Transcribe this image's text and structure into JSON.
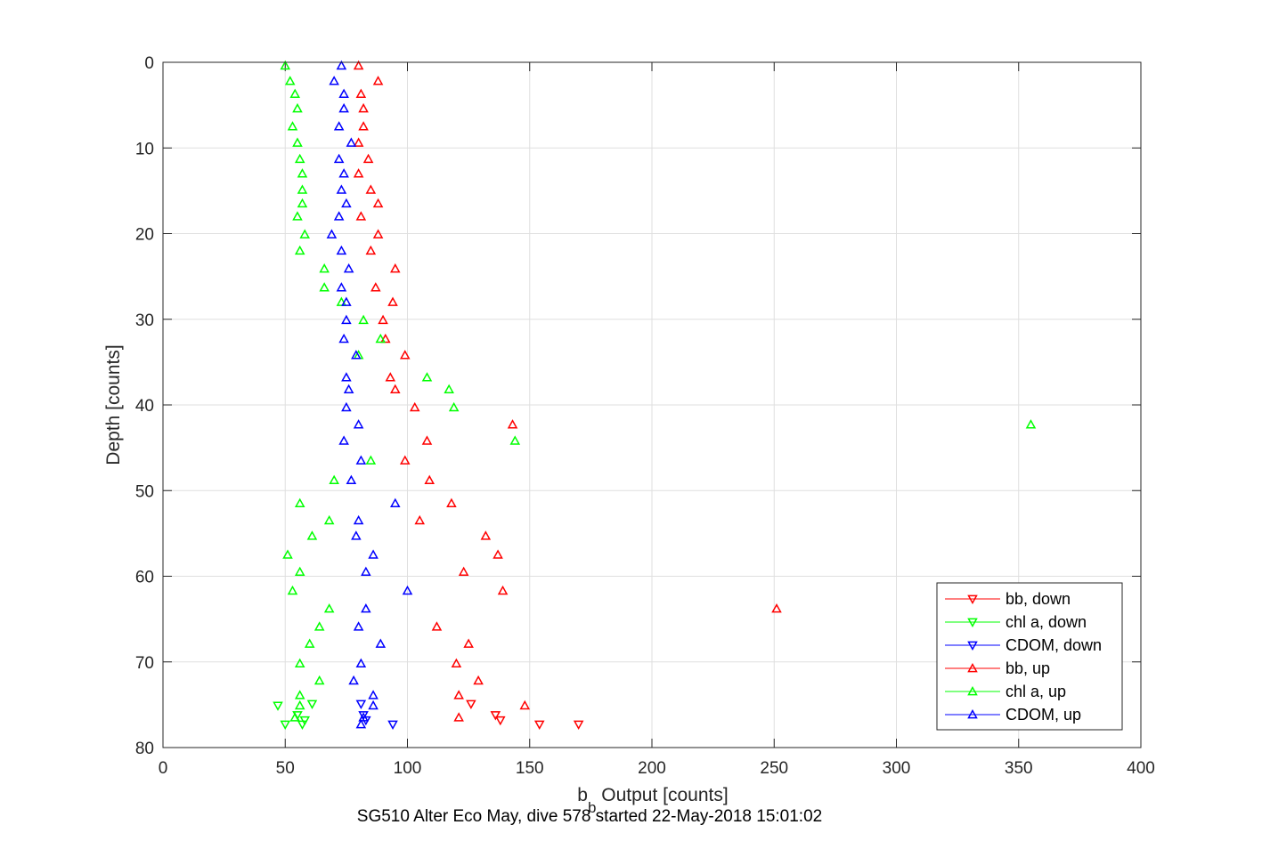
{
  "chart_data": {
    "type": "scatter",
    "xlabel": "b",
    "xlabel_sub": "b",
    "xlabel_rest": " Output [counts]",
    "ylabel": "Depth [counts]",
    "caption": "SG510 Alter Eco May, dive 578 started 22-May-2018 15:01:02",
    "xlim": [
      0,
      400
    ],
    "ylim": [
      80,
      0
    ],
    "y_reversed": true,
    "grid": true,
    "legend_placement": "bottom-right",
    "x_ticks": [
      0,
      50,
      100,
      150,
      200,
      250,
      300,
      350,
      400
    ],
    "x_tick_labels": [
      "0",
      "50",
      "100",
      "150",
      "200",
      "250",
      "300",
      "350",
      "400"
    ],
    "y_ticks": [
      0,
      10,
      20,
      30,
      40,
      50,
      60,
      70,
      80
    ],
    "y_tick_labels": [
      "0",
      "10",
      "20",
      "30",
      "40",
      "50",
      "60",
      "70",
      "80"
    ],
    "series": [
      {
        "name": "bb, down",
        "color": "#ff0000",
        "marker": "triangle-down",
        "points": [
          [
            126,
            74.9
          ],
          [
            136,
            76.2
          ],
          [
            138,
            76.8
          ],
          [
            154,
            77.3
          ],
          [
            170,
            77.3
          ]
        ]
      },
      {
        "name": "chl a, down",
        "color": "#00ff00",
        "marker": "triangle-down",
        "points": [
          [
            47,
            75.1
          ],
          [
            50,
            77.3
          ],
          [
            55,
            76.2
          ],
          [
            57,
            77.3
          ],
          [
            58,
            76.8
          ],
          [
            61,
            74.9
          ]
        ]
      },
      {
        "name": "CDOM, down",
        "color": "#0000ff",
        "marker": "triangle-down",
        "points": [
          [
            81,
            74.9
          ],
          [
            82,
            76.2
          ],
          [
            83,
            76.8
          ],
          [
            94,
            77.3
          ]
        ]
      },
      {
        "name": "bb, up",
        "color": "#ff0000",
        "marker": "triangle-up",
        "points": [
          [
            80,
            0.4
          ],
          [
            88,
            2.2
          ],
          [
            81,
            3.7
          ],
          [
            82,
            5.4
          ],
          [
            82,
            7.5
          ],
          [
            80,
            9.4
          ],
          [
            84,
            11.3
          ],
          [
            80,
            13.0
          ],
          [
            85,
            14.9
          ],
          [
            88,
            16.5
          ],
          [
            81,
            18.0
          ],
          [
            88,
            20.1
          ],
          [
            85,
            22.0
          ],
          [
            95,
            24.1
          ],
          [
            87,
            26.3
          ],
          [
            94,
            28.0
          ],
          [
            90,
            30.1
          ],
          [
            91,
            32.3
          ],
          [
            99,
            34.2
          ],
          [
            93,
            36.8
          ],
          [
            95,
            38.2
          ],
          [
            103,
            40.3
          ],
          [
            143,
            42.3
          ],
          [
            108,
            44.2
          ],
          [
            99,
            46.5
          ],
          [
            109,
            48.8
          ],
          [
            118,
            51.5
          ],
          [
            105,
            53.5
          ],
          [
            132,
            55.3
          ],
          [
            137,
            57.5
          ],
          [
            123,
            59.5
          ],
          [
            139,
            61.7
          ],
          [
            251,
            63.8
          ],
          [
            112,
            65.9
          ],
          [
            125,
            67.9
          ],
          [
            120,
            70.2
          ],
          [
            129,
            72.2
          ],
          [
            121,
            73.9
          ],
          [
            148,
            75.1
          ],
          [
            121,
            76.5
          ]
        ]
      },
      {
        "name": "chl a, up",
        "color": "#00ff00",
        "marker": "triangle-up",
        "points": [
          [
            50,
            0.4
          ],
          [
            52,
            2.2
          ],
          [
            54,
            3.7
          ],
          [
            55,
            5.4
          ],
          [
            53,
            7.5
          ],
          [
            55,
            9.4
          ],
          [
            56,
            11.3
          ],
          [
            57,
            13.0
          ],
          [
            57,
            14.9
          ],
          [
            57,
            16.5
          ],
          [
            55,
            18.0
          ],
          [
            58,
            20.1
          ],
          [
            56,
            22.0
          ],
          [
            66,
            24.1
          ],
          [
            66,
            26.3
          ],
          [
            73,
            28.0
          ],
          [
            82,
            30.1
          ],
          [
            89,
            32.3
          ],
          [
            80,
            34.2
          ],
          [
            108,
            36.8
          ],
          [
            117,
            38.2
          ],
          [
            119,
            40.3
          ],
          [
            355,
            42.3
          ],
          [
            144,
            44.2
          ],
          [
            85,
            46.5
          ],
          [
            70,
            48.8
          ],
          [
            56,
            51.5
          ],
          [
            68,
            53.5
          ],
          [
            61,
            55.3
          ],
          [
            51,
            57.5
          ],
          [
            56,
            59.5
          ],
          [
            53,
            61.7
          ],
          [
            68,
            63.8
          ],
          [
            64,
            65.9
          ],
          [
            60,
            67.9
          ],
          [
            56,
            70.2
          ],
          [
            64,
            72.2
          ],
          [
            56,
            73.9
          ],
          [
            56,
            75.1
          ],
          [
            54,
            76.5
          ]
        ]
      },
      {
        "name": "CDOM, up",
        "color": "#0000ff",
        "marker": "triangle-up",
        "points": [
          [
            73,
            0.4
          ],
          [
            70,
            2.2
          ],
          [
            74,
            3.7
          ],
          [
            74,
            5.4
          ],
          [
            72,
            7.5
          ],
          [
            77,
            9.4
          ],
          [
            72,
            11.3
          ],
          [
            74,
            13.0
          ],
          [
            73,
            14.9
          ],
          [
            75,
            16.5
          ],
          [
            72,
            18.0
          ],
          [
            69,
            20.1
          ],
          [
            73,
            22.0
          ],
          [
            76,
            24.1
          ],
          [
            73,
            26.3
          ],
          [
            75,
            28.0
          ],
          [
            75,
            30.1
          ],
          [
            74,
            32.3
          ],
          [
            79,
            34.2
          ],
          [
            75,
            36.8
          ],
          [
            76,
            38.2
          ],
          [
            75,
            40.3
          ],
          [
            80,
            42.3
          ],
          [
            74,
            44.2
          ],
          [
            81,
            46.5
          ],
          [
            77,
            48.8
          ],
          [
            95,
            51.5
          ],
          [
            80,
            53.5
          ],
          [
            79,
            55.3
          ],
          [
            86,
            57.5
          ],
          [
            83,
            59.5
          ],
          [
            100,
            61.7
          ],
          [
            83,
            63.8
          ],
          [
            80,
            65.9
          ],
          [
            89,
            67.9
          ],
          [
            81,
            70.2
          ],
          [
            78,
            72.2
          ],
          [
            86,
            73.9
          ],
          [
            86,
            75.1
          ],
          [
            82,
            76.5
          ],
          [
            81,
            77.3
          ]
        ]
      }
    ]
  }
}
